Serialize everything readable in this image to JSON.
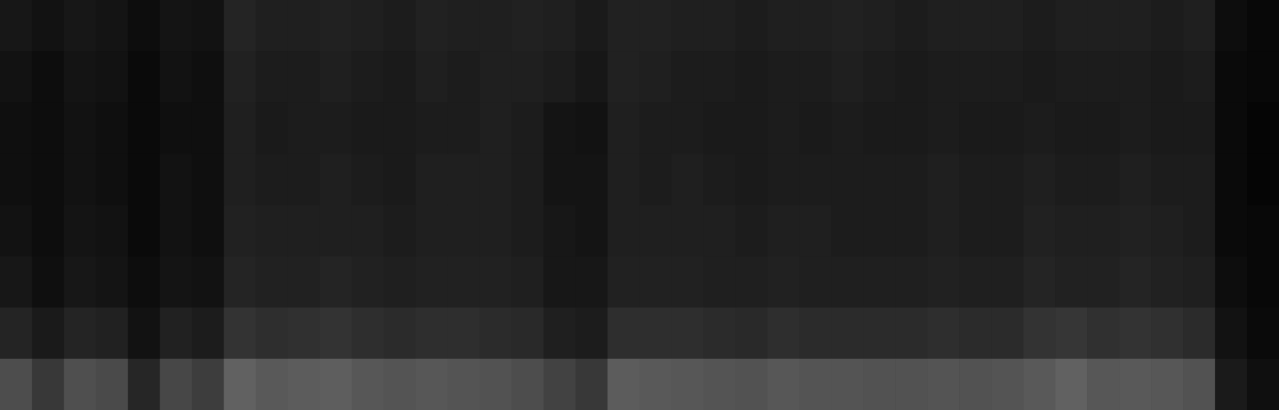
{
  "chart_data": {
    "type": "heatmap",
    "tick_labels": false,
    "cells": [
      [
        9,
        7,
        9,
        8,
        5,
        8,
        7,
        14,
        12,
        12,
        13,
        12,
        11,
        13,
        12,
        12,
        13,
        12,
        10,
        13,
        13,
        12,
        12,
        11,
        12,
        12,
        13,
        12,
        11,
        12,
        12,
        12,
        11,
        12,
        12,
        12,
        11,
        12,
        5,
        3
      ],
      [
        7,
        5,
        8,
        7,
        4,
        7,
        6,
        13,
        11,
        11,
        12,
        11,
        10,
        12,
        11,
        12,
        12,
        11,
        9,
        13,
        12,
        11,
        11,
        10,
        11,
        11,
        12,
        11,
        10,
        11,
        11,
        11,
        10,
        11,
        11,
        11,
        10,
        11,
        4,
        3
      ],
      [
        6,
        5,
        7,
        6,
        4,
        6,
        6,
        12,
        10,
        11,
        11,
        10,
        10,
        11,
        11,
        12,
        11,
        8,
        7,
        12,
        11,
        11,
        10,
        10,
        11,
        10,
        11,
        10,
        10,
        11,
        10,
        10,
        11,
        10,
        10,
        11,
        10,
        10,
        4,
        2
      ],
      [
        6,
        5,
        7,
        6,
        4,
        7,
        6,
        12,
        11,
        11,
        12,
        11,
        10,
        12,
        12,
        12,
        11,
        8,
        8,
        12,
        11,
        12,
        11,
        10,
        11,
        11,
        11,
        11,
        11,
        12,
        11,
        11,
        12,
        11,
        11,
        12,
        11,
        11,
        4,
        2
      ],
      [
        7,
        5,
        8,
        7,
        4,
        7,
        6,
        13,
        12,
        12,
        12,
        12,
        11,
        12,
        12,
        12,
        11,
        9,
        8,
        12,
        12,
        12,
        12,
        11,
        12,
        12,
        11,
        11,
        11,
        12,
        11,
        11,
        13,
        12,
        12,
        13,
        12,
        11,
        4,
        3
      ],
      [
        9,
        6,
        9,
        8,
        5,
        8,
        7,
        14,
        13,
        13,
        14,
        13,
        12,
        13,
        13,
        13,
        12,
        9,
        9,
        13,
        13,
        13,
        12,
        12,
        13,
        12,
        12,
        12,
        12,
        13,
        12,
        12,
        14,
        13,
        13,
        14,
        13,
        12,
        5,
        3
      ],
      [
        14,
        10,
        14,
        13,
        7,
        13,
        11,
        20,
        18,
        19,
        20,
        18,
        17,
        18,
        18,
        17,
        16,
        12,
        11,
        18,
        18,
        18,
        17,
        16,
        18,
        17,
        17,
        17,
        17,
        18,
        17,
        17,
        20,
        21,
        19,
        20,
        19,
        17,
        7,
        4
      ],
      [
        30,
        22,
        31,
        29,
        15,
        28,
        24,
        38,
        35,
        36,
        37,
        34,
        33,
        34,
        33,
        32,
        30,
        26,
        22,
        36,
        35,
        34,
        33,
        32,
        34,
        33,
        33,
        32,
        32,
        33,
        32,
        33,
        35,
        38,
        34,
        35,
        34,
        32,
        10,
        6
      ]
    ]
  }
}
